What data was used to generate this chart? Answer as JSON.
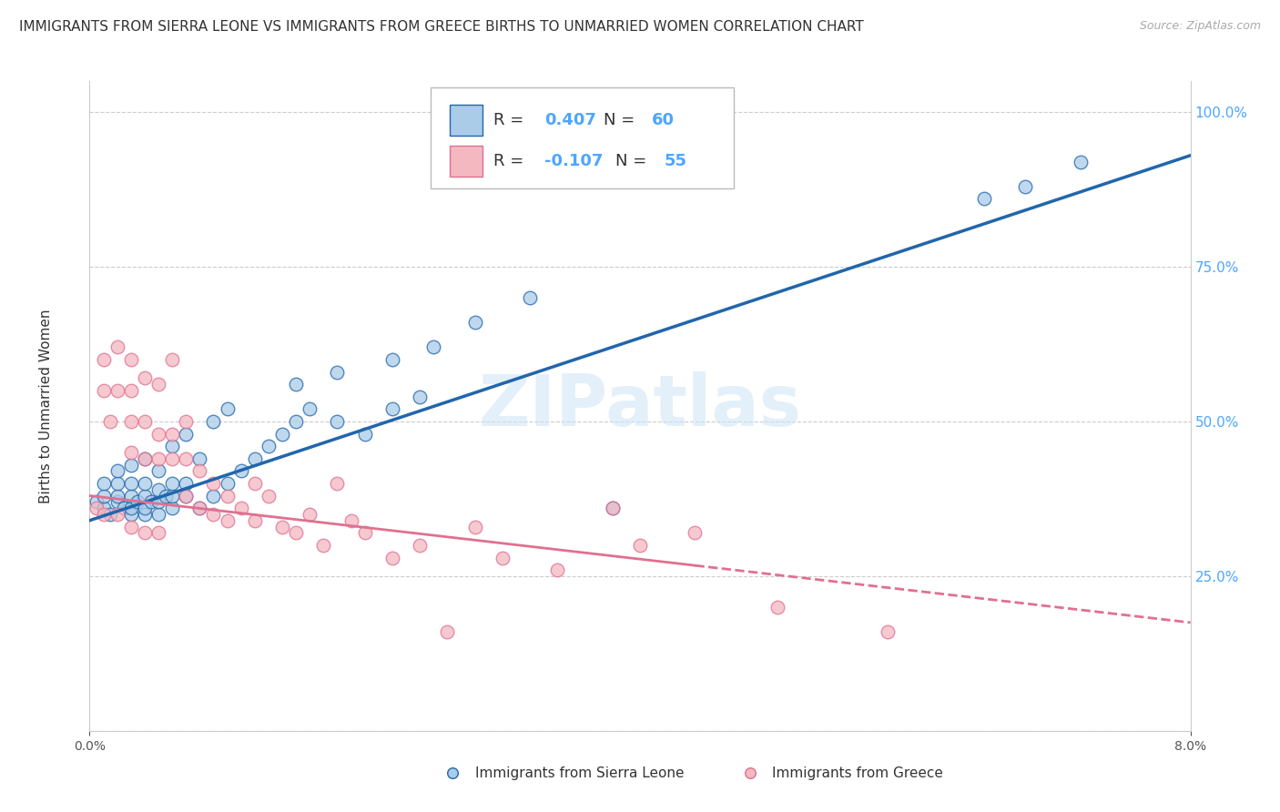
{
  "title": "IMMIGRANTS FROM SIERRA LEONE VS IMMIGRANTS FROM GREECE BIRTHS TO UNMARRIED WOMEN CORRELATION CHART",
  "source": "Source: ZipAtlas.com",
  "ylabel": "Births to Unmarried Women",
  "xlim": [
    0.0,
    0.08
  ],
  "ylim": [
    0.0,
    1.05
  ],
  "legend_val1": "0.407",
  "legend_n1": "60",
  "legend_val2": "-0.107",
  "legend_n2": "55",
  "color_sierra": "#aacce8",
  "color_greece": "#f4b8c1",
  "color_line_sierra": "#2166ac",
  "color_line_greece": "#e07090",
  "watermark_text": "ZIPatlas",
  "line_sierra_x0": 0.0,
  "line_sierra_y0": 0.34,
  "line_sierra_x1": 0.08,
  "line_sierra_y1": 0.93,
  "line_greece_x0": 0.0,
  "line_greece_y0": 0.38,
  "line_greece_x1": 0.08,
  "line_greece_y1": 0.175,
  "line_greece_solid_end": 0.044,
  "scatter_sierra_x": [
    0.0005,
    0.001,
    0.001,
    0.001,
    0.0015,
    0.002,
    0.002,
    0.002,
    0.002,
    0.0025,
    0.003,
    0.003,
    0.003,
    0.003,
    0.003,
    0.0035,
    0.004,
    0.004,
    0.004,
    0.004,
    0.004,
    0.0045,
    0.005,
    0.005,
    0.005,
    0.005,
    0.0055,
    0.006,
    0.006,
    0.006,
    0.006,
    0.007,
    0.007,
    0.007,
    0.008,
    0.008,
    0.009,
    0.009,
    0.01,
    0.01,
    0.011,
    0.012,
    0.013,
    0.014,
    0.015,
    0.016,
    0.018,
    0.02,
    0.022,
    0.024,
    0.015,
    0.018,
    0.022,
    0.025,
    0.028,
    0.032,
    0.038,
    0.065,
    0.068,
    0.072
  ],
  "scatter_sierra_y": [
    0.37,
    0.36,
    0.38,
    0.4,
    0.35,
    0.37,
    0.38,
    0.4,
    0.42,
    0.36,
    0.35,
    0.36,
    0.38,
    0.4,
    0.43,
    0.37,
    0.35,
    0.36,
    0.38,
    0.4,
    0.44,
    0.37,
    0.35,
    0.37,
    0.39,
    0.42,
    0.38,
    0.36,
    0.38,
    0.4,
    0.46,
    0.38,
    0.4,
    0.48,
    0.36,
    0.44,
    0.38,
    0.5,
    0.4,
    0.52,
    0.42,
    0.44,
    0.46,
    0.48,
    0.5,
    0.52,
    0.5,
    0.48,
    0.52,
    0.54,
    0.56,
    0.58,
    0.6,
    0.62,
    0.66,
    0.7,
    0.36,
    0.86,
    0.88,
    0.92
  ],
  "scatter_greece_x": [
    0.0005,
    0.001,
    0.001,
    0.001,
    0.0015,
    0.002,
    0.002,
    0.002,
    0.003,
    0.003,
    0.003,
    0.003,
    0.003,
    0.004,
    0.004,
    0.004,
    0.004,
    0.005,
    0.005,
    0.005,
    0.005,
    0.006,
    0.006,
    0.006,
    0.007,
    0.007,
    0.007,
    0.008,
    0.008,
    0.009,
    0.009,
    0.01,
    0.01,
    0.011,
    0.012,
    0.012,
    0.013,
    0.014,
    0.015,
    0.016,
    0.017,
    0.018,
    0.019,
    0.02,
    0.022,
    0.024,
    0.026,
    0.028,
    0.03,
    0.034,
    0.038,
    0.04,
    0.044,
    0.05,
    0.058
  ],
  "scatter_greece_y": [
    0.36,
    0.55,
    0.6,
    0.35,
    0.5,
    0.35,
    0.55,
    0.62,
    0.33,
    0.45,
    0.5,
    0.55,
    0.6,
    0.32,
    0.44,
    0.5,
    0.57,
    0.32,
    0.44,
    0.48,
    0.56,
    0.44,
    0.48,
    0.6,
    0.38,
    0.44,
    0.5,
    0.36,
    0.42,
    0.35,
    0.4,
    0.34,
    0.38,
    0.36,
    0.34,
    0.4,
    0.38,
    0.33,
    0.32,
    0.35,
    0.3,
    0.4,
    0.34,
    0.32,
    0.28,
    0.3,
    0.16,
    0.33,
    0.28,
    0.26,
    0.36,
    0.3,
    0.32,
    0.2,
    0.16
  ]
}
